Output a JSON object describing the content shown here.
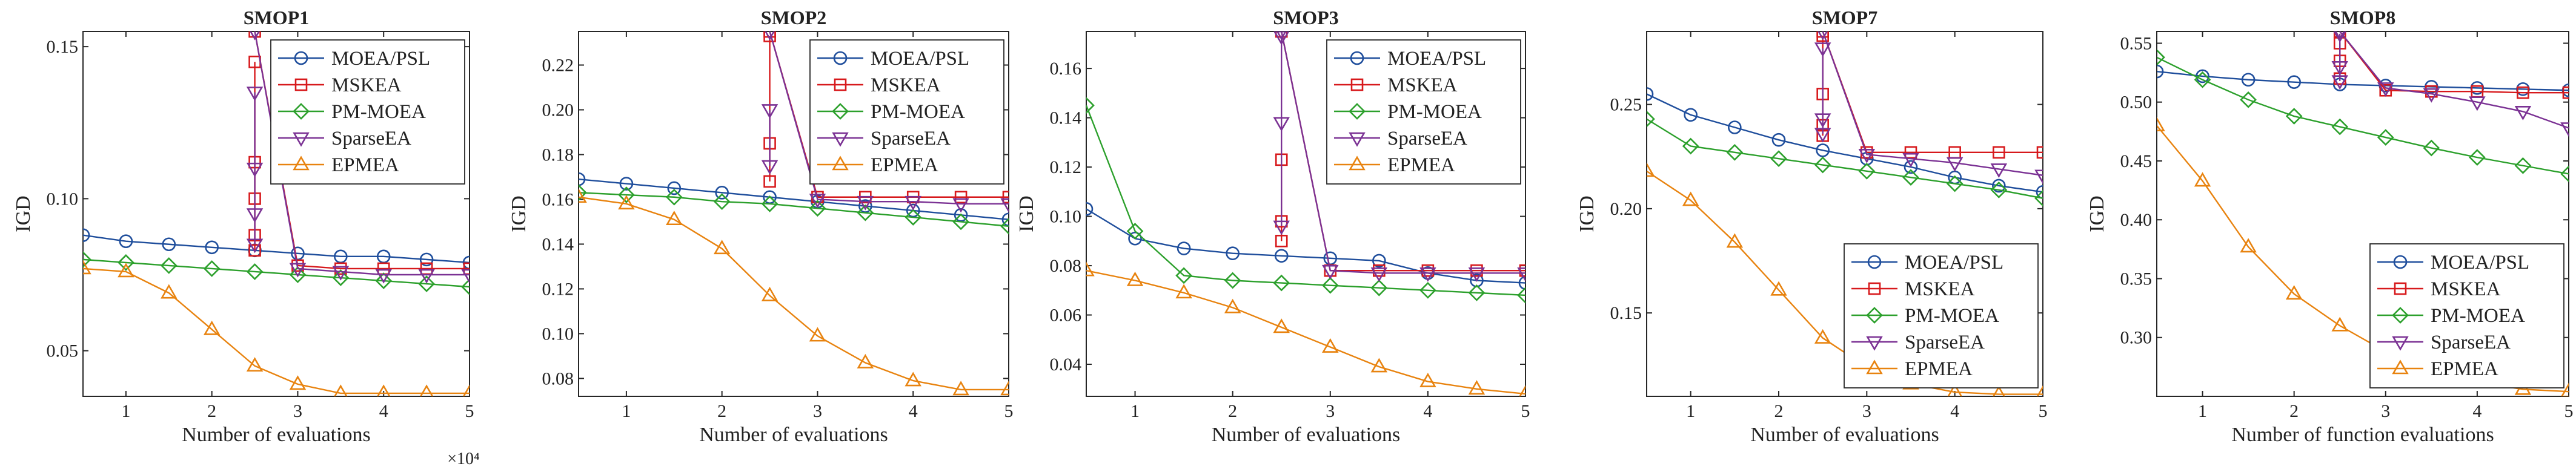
{
  "chart_data": [
    {
      "type": "line",
      "title": "SMOP1",
      "xlabel": "Number of evaluations",
      "ylabel": "IGD",
      "x_multiplier": "×10⁴",
      "xlim": [
        0.5,
        5
      ],
      "ylim": [
        0.035,
        0.155
      ],
      "xticks": [
        1,
        2,
        3,
        4,
        5
      ],
      "yticks": [
        0.05,
        0.1,
        0.15
      ],
      "yticklabels": [
        "0.05",
        "0.10",
        "0.15"
      ],
      "legend_loc": "top-right",
      "x": [
        0.5,
        1,
        1.5,
        2,
        2.5,
        3,
        3.5,
        4,
        4.5,
        5
      ],
      "series": [
        {
          "name": "MOEA/PSL",
          "color": "#1f4e9c",
          "marker": "circle",
          "values": [
            0.088,
            0.086,
            0.085,
            0.084,
            0.083,
            0.082,
            0.081,
            0.081,
            0.08,
            0.079
          ],
          "extra": []
        },
        {
          "name": "MSKEA",
          "color": "#d7191c",
          "marker": "square",
          "values": [
            null,
            null,
            null,
            null,
            0.155,
            0.078,
            0.077,
            0.077,
            0.077,
            0.077
          ],
          "extra": [
            [
              2.5,
              0.145
            ],
            [
              2.5,
              0.112
            ],
            [
              2.5,
              0.1
            ],
            [
              2.5,
              0.088
            ],
            [
              2.5,
              0.083
            ]
          ]
        },
        {
          "name": "PM-MOEA",
          "color": "#2ca02c",
          "marker": "diamond",
          "values": [
            0.08,
            0.079,
            0.078,
            0.077,
            0.076,
            0.075,
            0.074,
            0.073,
            0.072,
            0.071
          ],
          "extra": []
        },
        {
          "name": "SparseEA",
          "color": "#7b3294",
          "marker": "triangle-down",
          "values": [
            null,
            null,
            null,
            null,
            0.155,
            0.077,
            0.076,
            0.075,
            0.075,
            0.075
          ],
          "extra": [
            [
              2.5,
              0.135
            ],
            [
              2.5,
              0.11
            ],
            [
              2.5,
              0.095
            ],
            [
              2.5,
              0.085
            ]
          ]
        },
        {
          "name": "EPMEA",
          "color": "#e8830f",
          "marker": "triangle-up",
          "values": [
            0.077,
            0.076,
            0.069,
            0.057,
            0.045,
            0.039,
            0.036,
            0.036,
            0.036,
            0.036
          ],
          "extra": []
        }
      ]
    },
    {
      "type": "line",
      "title": "SMOP2",
      "xlabel": "Number of evaluations",
      "ylabel": "IGD",
      "x_multiplier": "",
      "xlim": [
        0.5,
        5
      ],
      "ylim": [
        0.072,
        0.235
      ],
      "xticks": [
        1,
        2,
        3,
        4,
        5
      ],
      "yticks": [
        0.08,
        0.1,
        0.12,
        0.14,
        0.16,
        0.18,
        0.2,
        0.22
      ],
      "yticklabels": [
        "0.08",
        "0.10",
        "0.12",
        "0.14",
        "0.16",
        "0.18",
        "0.20",
        "0.22"
      ],
      "legend_loc": "top-right",
      "x": [
        0.5,
        1,
        1.5,
        2,
        2.5,
        3,
        3.5,
        4,
        4.5,
        5
      ],
      "series": [
        {
          "name": "MOEA/PSL",
          "color": "#1f4e9c",
          "marker": "circle",
          "values": [
            0.169,
            0.167,
            0.165,
            0.163,
            0.161,
            0.159,
            0.157,
            0.155,
            0.153,
            0.151
          ],
          "extra": []
        },
        {
          "name": "MSKEA",
          "color": "#d7191c",
          "marker": "square",
          "values": [
            null,
            null,
            null,
            null,
            0.235,
            0.161,
            0.161,
            0.161,
            0.161,
            0.161
          ],
          "extra": [
            [
              2.5,
              0.233
            ],
            [
              2.5,
              0.185
            ],
            [
              2.5,
              0.168
            ]
          ]
        },
        {
          "name": "PM-MOEA",
          "color": "#2ca02c",
          "marker": "diamond",
          "values": [
            0.163,
            0.162,
            0.161,
            0.159,
            0.158,
            0.156,
            0.154,
            0.152,
            0.15,
            0.148
          ],
          "extra": []
        },
        {
          "name": "SparseEA",
          "color": "#7b3294",
          "marker": "triangle-down",
          "values": [
            null,
            null,
            null,
            null,
            0.235,
            0.16,
            0.159,
            0.159,
            0.158,
            0.158
          ],
          "extra": [
            [
              2.5,
              0.2
            ],
            [
              2.5,
              0.175
            ]
          ]
        },
        {
          "name": "EPMEA",
          "color": "#e8830f",
          "marker": "triangle-up",
          "values": [
            0.161,
            0.158,
            0.151,
            0.138,
            0.117,
            0.099,
            0.087,
            0.079,
            0.075,
            0.075
          ],
          "extra": []
        }
      ]
    },
    {
      "type": "line",
      "title": "SMOP3",
      "xlabel": "Number of evaluations",
      "ylabel": "IGD",
      "x_multiplier": "",
      "xlim": [
        0.5,
        5
      ],
      "ylim": [
        0.027,
        0.175
      ],
      "xticks": [
        1,
        2,
        3,
        4,
        5
      ],
      "yticks": [
        0.04,
        0.06,
        0.08,
        0.1,
        0.12,
        0.14,
        0.16
      ],
      "yticklabels": [
        "0.04",
        "0.06",
        "0.08",
        "0.10",
        "0.12",
        "0.14",
        "0.16"
      ],
      "legend_loc": "top-right",
      "x": [
        0.5,
        1,
        1.5,
        2,
        2.5,
        3,
        3.5,
        4,
        4.5,
        5
      ],
      "series": [
        {
          "name": "MOEA/PSL",
          "color": "#1f4e9c",
          "marker": "circle",
          "values": [
            0.103,
            0.091,
            0.087,
            0.085,
            0.084,
            0.083,
            0.082,
            0.077,
            0.074,
            0.073
          ],
          "extra": []
        },
        {
          "name": "MSKEA",
          "color": "#d7191c",
          "marker": "square",
          "values": [
            null,
            null,
            null,
            null,
            0.175,
            0.078,
            0.078,
            0.078,
            0.078,
            0.078
          ],
          "extra": [
            [
              2.5,
              0.123
            ],
            [
              2.5,
              0.098
            ],
            [
              2.5,
              0.09
            ]
          ]
        },
        {
          "name": "PM-MOEA",
          "color": "#2ca02c",
          "marker": "diamond",
          "values": [
            0.145,
            0.094,
            0.076,
            0.074,
            0.073,
            0.072,
            0.071,
            0.07,
            0.069,
            0.068
          ],
          "extra": []
        },
        {
          "name": "SparseEA",
          "color": "#7b3294",
          "marker": "triangle-down",
          "values": [
            null,
            null,
            null,
            null,
            0.175,
            0.078,
            0.077,
            0.077,
            0.077,
            0.077
          ],
          "extra": [
            [
              2.5,
              0.173
            ],
            [
              2.5,
              0.138
            ],
            [
              2.5,
              0.096
            ]
          ]
        },
        {
          "name": "EPMEA",
          "color": "#e8830f",
          "marker": "triangle-up",
          "values": [
            0.078,
            0.074,
            0.069,
            0.063,
            0.055,
            0.047,
            0.039,
            0.033,
            0.03,
            0.028
          ],
          "extra": []
        }
      ]
    },
    {
      "type": "line",
      "title": "SMOP7",
      "xlabel": "Number of evaluations",
      "ylabel": "IGD",
      "x_multiplier": "",
      "xlim": [
        0.5,
        5
      ],
      "ylim": [
        0.11,
        0.285
      ],
      "xticks": [
        1,
        2,
        3,
        4,
        5
      ],
      "yticks": [
        0.15,
        0.2,
        0.25
      ],
      "yticklabels": [
        "0.15",
        "0.20",
        "0.25"
      ],
      "legend_loc": "bottom-right",
      "x": [
        0.5,
        1,
        1.5,
        2,
        2.5,
        3,
        3.5,
        4,
        4.5,
        5
      ],
      "series": [
        {
          "name": "MOEA/PSL",
          "color": "#1f4e9c",
          "marker": "circle",
          "values": [
            0.255,
            0.245,
            0.239,
            0.233,
            0.228,
            0.224,
            0.22,
            0.215,
            0.211,
            0.208
          ],
          "extra": []
        },
        {
          "name": "MSKEA",
          "color": "#d7191c",
          "marker": "square",
          "values": [
            null,
            null,
            null,
            null,
            0.285,
            0.227,
            0.227,
            0.227,
            0.227,
            0.227
          ],
          "extra": [
            [
              2.5,
              0.283
            ],
            [
              2.5,
              0.255
            ],
            [
              2.5,
              0.24
            ],
            [
              2.5,
              0.235
            ]
          ]
        },
        {
          "name": "PM-MOEA",
          "color": "#2ca02c",
          "marker": "diamond",
          "values": [
            0.243,
            0.23,
            0.227,
            0.224,
            0.221,
            0.218,
            0.215,
            0.212,
            0.209,
            0.205
          ],
          "extra": []
        },
        {
          "name": "SparseEA",
          "color": "#7b3294",
          "marker": "triangle-down",
          "values": [
            null,
            null,
            null,
            null,
            0.285,
            0.226,
            0.224,
            0.222,
            0.219,
            0.216
          ],
          "extra": [
            [
              2.5,
              0.277
            ],
            [
              2.5,
              0.243
            ],
            [
              2.5,
              0.236
            ]
          ]
        },
        {
          "name": "EPMEA",
          "color": "#e8830f",
          "marker": "triangle-up",
          "values": [
            0.218,
            0.204,
            0.184,
            0.161,
            0.138,
            0.124,
            0.116,
            0.112,
            0.111,
            0.111
          ],
          "extra": []
        }
      ]
    },
    {
      "type": "line",
      "title": "SMOP8",
      "xlabel": "Number of function evaluations",
      "ylabel": "IGD",
      "x_multiplier": "",
      "xlim": [
        0.5,
        5
      ],
      "ylim": [
        0.25,
        0.56
      ],
      "xticks": [
        1,
        2,
        3,
        4,
        5
      ],
      "yticks": [
        0.3,
        0.35,
        0.4,
        0.45,
        0.5,
        0.55
      ],
      "yticklabels": [
        "0.30",
        "0.35",
        "0.40",
        "0.45",
        "0.50",
        "0.55"
      ],
      "legend_loc": "bottom-right",
      "x": [
        0.5,
        1,
        1.5,
        2,
        2.5,
        3,
        3.5,
        4,
        4.5,
        5
      ],
      "series": [
        {
          "name": "MOEA/PSL",
          "color": "#1f4e9c",
          "marker": "circle",
          "values": [
            0.526,
            0.522,
            0.519,
            0.517,
            0.515,
            0.514,
            0.513,
            0.512,
            0.511,
            0.51
          ],
          "extra": []
        },
        {
          "name": "MSKEA",
          "color": "#d7191c",
          "marker": "square",
          "values": [
            null,
            null,
            null,
            null,
            0.56,
            0.51,
            0.509,
            0.509,
            0.508,
            0.508
          ],
          "extra": [
            [
              2.5,
              0.55
            ],
            [
              2.5,
              0.535
            ],
            [
              2.5,
              0.52
            ]
          ]
        },
        {
          "name": "PM-MOEA",
          "color": "#2ca02c",
          "marker": "diamond",
          "values": [
            0.538,
            0.519,
            0.502,
            0.488,
            0.479,
            0.47,
            0.461,
            0.453,
            0.446,
            0.439
          ],
          "extra": []
        },
        {
          "name": "SparseEA",
          "color": "#7b3294",
          "marker": "triangle-down",
          "values": [
            null,
            null,
            null,
            null,
            0.56,
            0.512,
            0.507,
            0.5,
            0.492,
            0.478
          ],
          "extra": [
            [
              2.5,
              0.558
            ],
            [
              2.5,
              0.53
            ],
            [
              2.5,
              0.518
            ]
          ]
        },
        {
          "name": "EPMEA",
          "color": "#e8830f",
          "marker": "triangle-up",
          "values": [
            0.48,
            0.433,
            0.377,
            0.337,
            0.31,
            0.288,
            0.272,
            0.262,
            0.256,
            0.254
          ],
          "extra": []
        }
      ]
    }
  ]
}
